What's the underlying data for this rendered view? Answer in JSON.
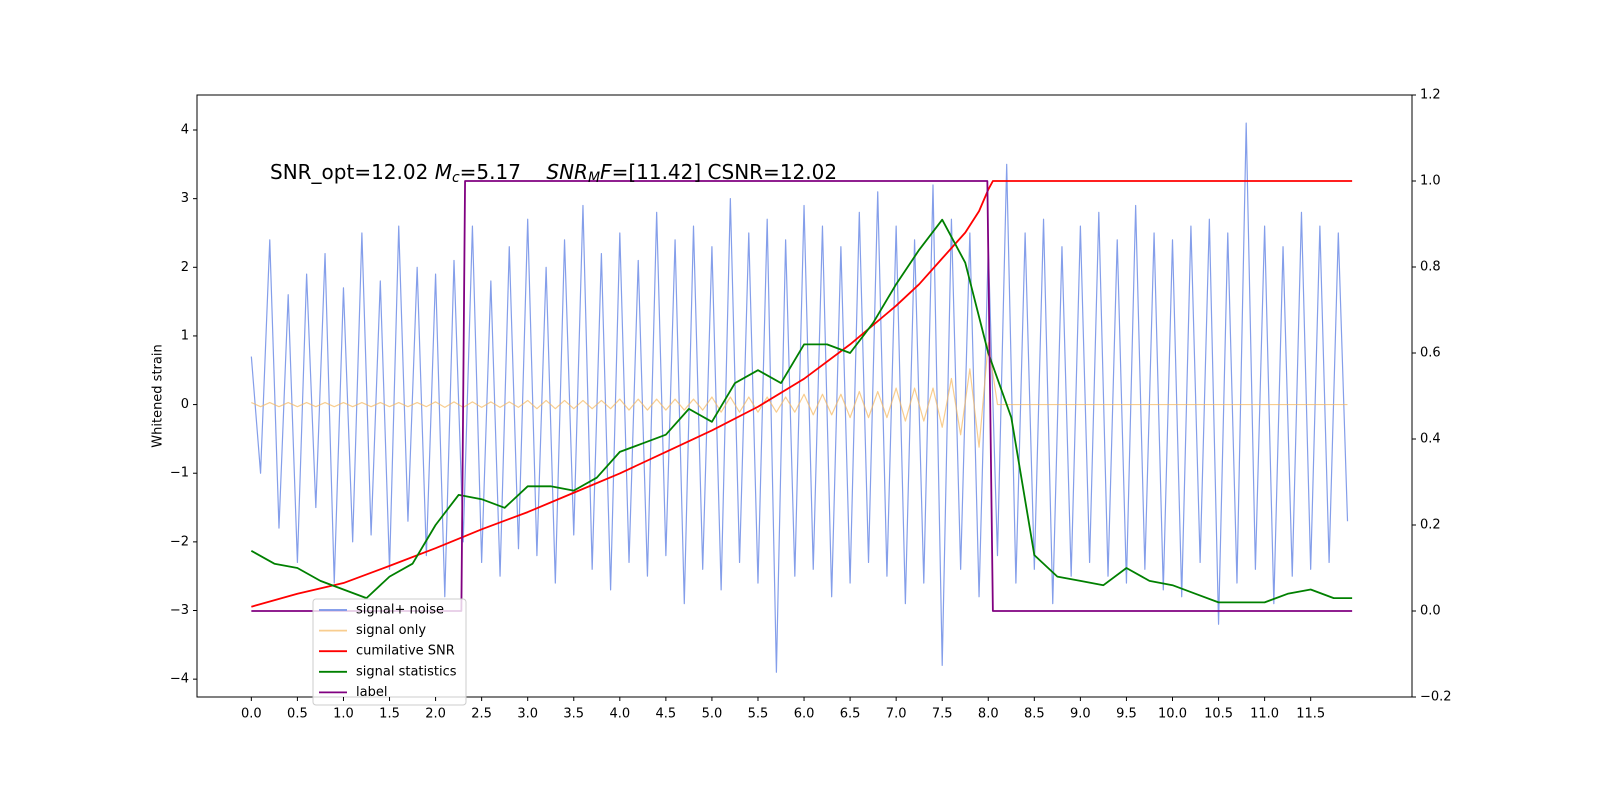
{
  "chart_data": {
    "type": "line",
    "ylabel": "Whitened strain",
    "annotation": [
      "SNR_opt=12.02 ",
      "M",
      "c",
      "=5.17    ",
      "SNR",
      "M",
      "F",
      "=[11.42] CSNR=12.02"
    ],
    "legend": "lower left",
    "grid": false,
    "xlim": [
      -0.59,
      12.6
    ],
    "ylim": [
      -4.26,
      4.51
    ],
    "y2lim": [
      -0.2,
      1.2
    ],
    "xticks": [
      {
        "value": 0,
        "label": "0.0"
      },
      0.5,
      {
        "value": 1,
        "label": "1.0"
      },
      1.5,
      {
        "value": 2,
        "label": "2.0"
      },
      2.5,
      {
        "value": 3,
        "label": "3.0"
      },
      3.5,
      {
        "value": 4,
        "label": "4.0"
      },
      4.5,
      {
        "value": 5,
        "label": "5.0"
      },
      5.5,
      {
        "value": 6,
        "label": "6.0"
      },
      6.5,
      {
        "value": 7,
        "label": "7.0"
      },
      7.5,
      {
        "value": 8,
        "label": "8.0"
      },
      8.5,
      {
        "value": 9,
        "label": "9.0"
      },
      9.5,
      {
        "value": 10,
        "label": "10.0"
      },
      10.5,
      {
        "value": 11,
        "label": "11.0"
      },
      11.5
    ],
    "yticks": [
      {
        "value": -4,
        "label": "−4"
      },
      {
        "value": -3,
        "label": "−3"
      },
      {
        "value": -2,
        "label": "−2"
      },
      {
        "value": -1,
        "label": "−1"
      },
      0,
      1,
      2,
      3,
      4
    ],
    "y2ticks": [
      {
        "value": -0.2,
        "label": "−0.2"
      },
      {
        "value": 0,
        "label": "0.0"
      },
      0.2,
      0.4,
      0.6,
      0.8,
      {
        "value": 1,
        "label": "1.0"
      },
      1.2
    ],
    "x": [
      0,
      0.1,
      0.2,
      0.3,
      0.4,
      0.5,
      0.6,
      0.7,
      0.8,
      0.9,
      1,
      1.1,
      1.2,
      1.3,
      1.4,
      1.5,
      1.6,
      1.7,
      1.8,
      1.9,
      2,
      2.1,
      2.2,
      2.3,
      2.4,
      2.5,
      2.6,
      2.7,
      2.8,
      2.9,
      3,
      3.1,
      3.2,
      3.3,
      3.4,
      3.5,
      3.6,
      3.7,
      3.8,
      3.9,
      4,
      4.1,
      4.2,
      4.3,
      4.4,
      4.5,
      4.6,
      4.7,
      4.8,
      4.9,
      5,
      5.1,
      5.2,
      5.3,
      5.4,
      5.5,
      5.6,
      5.7,
      5.8,
      5.9,
      6,
      6.1,
      6.2,
      6.3,
      6.4,
      6.5,
      6.6,
      6.7,
      6.8,
      6.9,
      7,
      7.1,
      7.2,
      7.3,
      7.4,
      7.5,
      7.6,
      7.7,
      7.8,
      7.9,
      8,
      8.1,
      8.2,
      8.3,
      8.4,
      8.5,
      8.6,
      8.7,
      8.8,
      8.9,
      9,
      9.1,
      9.2,
      9.3,
      9.4,
      9.5,
      9.6,
      9.7,
      9.8,
      9.9,
      10,
      10.1,
      10.2,
      10.3,
      10.4,
      10.5,
      10.6,
      10.7,
      10.8,
      10.9,
      11,
      11.1,
      11.2,
      11.3,
      11.4,
      11.5,
      11.6,
      11.7,
      11.8,
      11.9
    ],
    "series": [
      {
        "name": "signal+ noise",
        "color": "#7793e8",
        "values": [
          0.7,
          -1.0,
          2.4,
          -1.8,
          1.6,
          -2.3,
          1.9,
          -1.5,
          2.2,
          -2.6,
          1.7,
          -2.0,
          2.5,
          -1.9,
          1.8,
          -2.4,
          2.6,
          -1.7,
          2.0,
          -2.2,
          1.9,
          -2.8,
          2.1,
          -2.0,
          2.6,
          -2.3,
          1.8,
          -2.5,
          2.3,
          -2.1,
          2.7,
          -2.2,
          2.0,
          -2.6,
          2.4,
          -1.9,
          2.9,
          -2.4,
          2.2,
          -2.7,
          2.5,
          -2.3,
          2.1,
          -2.5,
          2.8,
          -2.2,
          2.4,
          -2.9,
          2.6,
          -2.4,
          2.3,
          -2.7,
          3.0,
          -2.3,
          2.5,
          -2.6,
          2.7,
          -3.9,
          2.4,
          -2.5,
          2.9,
          -2.4,
          2.6,
          -2.8,
          2.3,
          -2.6,
          2.8,
          -2.3,
          3.1,
          -2.5,
          2.6,
          -2.9,
          2.4,
          -2.6,
          3.2,
          -3.8,
          2.7,
          -2.4,
          2.5,
          -2.8,
          2.3,
          -2.2,
          3.5,
          -2.6,
          2.5,
          -2.4,
          2.7,
          -2.9,
          2.3,
          -2.5,
          2.6,
          -2.3,
          2.8,
          -2.5,
          2.4,
          -2.6,
          2.9,
          -2.4,
          2.5,
          -2.7,
          2.4,
          -2.8,
          2.6,
          -2.3,
          2.7,
          -3.2,
          2.5,
          -2.6,
          4.1,
          -2.4,
          2.6,
          -2.9,
          2.3,
          -2.5,
          2.8,
          -2.4,
          2.6,
          -2.3,
          2.5,
          -1.7
        ]
      },
      {
        "name": "signal only",
        "color": "#f5b860",
        "values": [
          0.03,
          -0.03,
          0.03,
          -0.03,
          0.03,
          -0.03,
          0.03,
          -0.03,
          0.03,
          -0.03,
          0.03,
          -0.03,
          0.03,
          -0.03,
          0.03,
          -0.03,
          0.03,
          -0.03,
          0.03,
          -0.03,
          0.04,
          -0.04,
          0.04,
          -0.04,
          0.04,
          -0.04,
          0.04,
          -0.04,
          0.04,
          -0.04,
          0.06,
          -0.06,
          0.06,
          -0.06,
          0.06,
          -0.06,
          0.06,
          -0.06,
          0.06,
          -0.06,
          0.08,
          -0.08,
          0.08,
          -0.08,
          0.08,
          -0.08,
          0.08,
          -0.08,
          0.08,
          -0.08,
          0.11,
          -0.11,
          0.11,
          -0.11,
          0.11,
          -0.11,
          0.11,
          -0.11,
          0.11,
          -0.11,
          0.15,
          -0.15,
          0.15,
          -0.15,
          0.15,
          -0.19,
          0.19,
          -0.19,
          0.19,
          -0.19,
          0.24,
          -0.24,
          0.24,
          -0.24,
          0.24,
          -0.33,
          0.38,
          -0.44,
          0.52,
          -0.62,
          0.9,
          0,
          0,
          0,
          0,
          0,
          0,
          0,
          0,
          0,
          0,
          0,
          0,
          0,
          0,
          0,
          0,
          0,
          0,
          0,
          0,
          0,
          0,
          0,
          0,
          0,
          0,
          0,
          0,
          0,
          0,
          0,
          0,
          0,
          0,
          0,
          0,
          0,
          0,
          0
        ]
      },
      {
        "name": "cumilative SNR",
        "color": "#ff0000",
        "axis": "y2",
        "x": [
          0,
          0.5,
          1,
          1.5,
          2,
          2.5,
          3,
          3.5,
          4,
          4.5,
          5,
          5.5,
          6,
          6.5,
          7,
          7.25,
          7.5,
          7.75,
          7.9,
          8.0,
          8.05,
          11.95
        ],
        "values": [
          0.01,
          0.04,
          0.065,
          0.105,
          0.146,
          0.19,
          0.23,
          0.275,
          0.32,
          0.37,
          0.42,
          0.475,
          0.54,
          0.62,
          0.71,
          0.76,
          0.82,
          0.88,
          0.93,
          0.98,
          1.0,
          1.0
        ]
      },
      {
        "name": "signal statistics",
        "color": "#008000",
        "axis": "y2",
        "x": [
          0,
          0.25,
          0.5,
          0.75,
          1,
          1.25,
          1.5,
          1.75,
          2,
          2.25,
          2.5,
          2.75,
          3,
          3.25,
          3.5,
          3.75,
          4,
          4.25,
          4.5,
          4.75,
          5,
          5.25,
          5.5,
          5.75,
          6,
          6.25,
          6.5,
          6.75,
          7,
          7.25,
          7.5,
          7.75,
          8,
          8.25,
          8.5,
          8.75,
          9,
          9.25,
          9.5,
          9.75,
          10,
          10.25,
          10.5,
          10.75,
          11,
          11.25,
          11.5,
          11.75,
          11.95
        ],
        "values": [
          0.14,
          0.11,
          0.1,
          0.07,
          0.05,
          0.03,
          0.08,
          0.11,
          0.2,
          0.27,
          0.26,
          0.24,
          0.29,
          0.29,
          0.28,
          0.31,
          0.37,
          0.39,
          0.41,
          0.47,
          0.44,
          0.53,
          0.56,
          0.53,
          0.62,
          0.62,
          0.6,
          0.67,
          0.76,
          0.84,
          0.91,
          0.81,
          0.6,
          0.45,
          0.13,
          0.08,
          0.07,
          0.06,
          0.1,
          0.07,
          0.06,
          0.04,
          0.02,
          0.02,
          0.02,
          0.04,
          0.05,
          0.03,
          0.03
        ]
      },
      {
        "name": "label",
        "color": "#800080",
        "axis": "y2",
        "x": [
          0,
          2.28,
          2.32,
          7.99,
          8.05,
          11.95
        ],
        "values": [
          0,
          0,
          1,
          1,
          0,
          0
        ]
      }
    ]
  }
}
